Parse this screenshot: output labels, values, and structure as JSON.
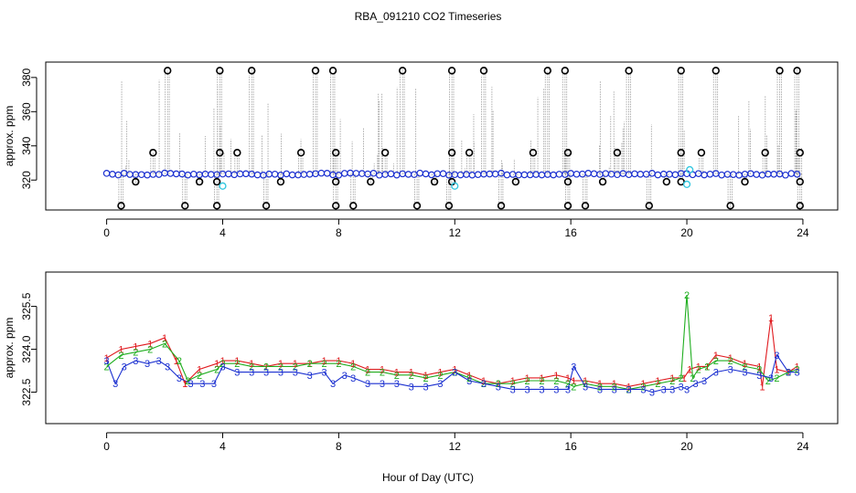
{
  "title": "RBA_091210  CO2 Timeseries",
  "xlabel": "Hour of Day (UTC)",
  "chart_data": [
    {
      "type": "scatter",
      "panel": "top",
      "ylabel": "approx. ppm",
      "xlim": [
        -2.1,
        25.2
      ],
      "ylim": [
        302.5,
        389
      ],
      "xticks": [
        0,
        4,
        8,
        12,
        16,
        20,
        24
      ],
      "yticks": [
        320,
        340,
        360,
        380
      ],
      "xtick_labels": [
        "0",
        "4",
        "8",
        "12",
        "16",
        "20",
        "24"
      ],
      "ytick_labels": [
        "320",
        "340",
        "360",
        "380"
      ],
      "baseline_ppm": 323.5,
      "outliers_high": [
        [
          2.1,
          384
        ],
        [
          3.9,
          384
        ],
        [
          5.0,
          384
        ],
        [
          7.2,
          384
        ],
        [
          7.8,
          384
        ],
        [
          10.2,
          384
        ],
        [
          11.9,
          384
        ],
        [
          13.0,
          384
        ],
        [
          15.2,
          384
        ],
        [
          15.8,
          384
        ],
        [
          18.0,
          384
        ],
        [
          19.8,
          384
        ],
        [
          21.0,
          384
        ],
        [
          23.2,
          384
        ],
        [
          23.8,
          384
        ]
      ],
      "outliers_mid": [
        [
          1.6,
          336
        ],
        [
          3.9,
          336
        ],
        [
          4.5,
          336
        ],
        [
          6.7,
          336
        ],
        [
          7.9,
          336
        ],
        [
          9.6,
          336
        ],
        [
          11.9,
          336
        ],
        [
          12.5,
          336
        ],
        [
          14.7,
          336
        ],
        [
          15.9,
          336
        ],
        [
          17.6,
          336
        ],
        [
          19.8,
          336
        ],
        [
          20.5,
          336
        ],
        [
          22.7,
          336
        ],
        [
          23.9,
          336
        ]
      ],
      "outliers_low": [
        [
          0.5,
          305
        ],
        [
          2.7,
          305
        ],
        [
          3.8,
          305
        ],
        [
          5.5,
          305
        ],
        [
          7.9,
          305
        ],
        [
          8.5,
          305
        ],
        [
          10.7,
          305
        ],
        [
          11.8,
          305
        ],
        [
          13.6,
          305
        ],
        [
          15.9,
          305
        ],
        [
          16.5,
          305
        ],
        [
          18.7,
          305
        ],
        [
          21.5,
          305
        ],
        [
          23.9,
          305
        ],
        [
          1.0,
          319
        ],
        [
          3.2,
          319
        ],
        [
          3.8,
          319
        ],
        [
          6.0,
          319
        ],
        [
          7.9,
          319
        ],
        [
          9.1,
          319
        ],
        [
          11.3,
          319
        ],
        [
          11.9,
          319
        ],
        [
          14.1,
          319
        ],
        [
          15.9,
          319
        ],
        [
          17.1,
          319
        ],
        [
          19.3,
          319
        ],
        [
          19.8,
          319
        ],
        [
          22.0,
          319
        ],
        [
          23.9,
          319
        ]
      ],
      "cyan_points": [
        [
          4.0,
          316.5
        ],
        [
          12.0,
          316.5
        ],
        [
          20.0,
          317.5
        ],
        [
          20.1,
          326
        ]
      ]
    },
    {
      "type": "line",
      "panel": "bottom",
      "ylabel": "approx. ppm",
      "xlim": [
        -2.1,
        25.2
      ],
      "ylim": [
        321.4,
        326.7
      ],
      "xticks": [
        0,
        4,
        8,
        12,
        16,
        20,
        24
      ],
      "yticks": [
        322.5,
        324.0,
        325.5
      ],
      "xtick_labels": [
        "0",
        "4",
        "8",
        "12",
        "16",
        "20",
        "24"
      ],
      "ytick_labels": [
        "322.5",
        "324.0",
        "325.5"
      ],
      "series": [
        {
          "name": "1",
          "color": "#e0191e",
          "x": [
            0,
            0.5,
            1,
            1.5,
            2,
            2.4,
            2.7,
            3.2,
            3.8,
            4,
            4.5,
            5,
            5.5,
            6,
            6.5,
            7,
            7.5,
            8,
            8.5,
            9,
            9.5,
            10,
            10.5,
            11,
            11.5,
            12,
            12.5,
            13,
            13.5,
            14,
            14.5,
            15,
            15.5,
            15.9,
            16.1,
            16.5,
            17,
            17.5,
            18,
            18.5,
            19,
            19.5,
            19.9,
            20.1,
            20.4,
            20.7,
            21,
            21.5,
            22,
            22.5,
            22.6,
            22.9,
            23.1,
            23.5,
            23.8
          ],
          "y": [
            323.7,
            324.0,
            324.1,
            324.2,
            324.4,
            323.6,
            322.8,
            323.3,
            323.5,
            323.6,
            323.6,
            323.5,
            323.4,
            323.5,
            323.5,
            323.5,
            323.6,
            323.6,
            323.5,
            323.3,
            323.3,
            323.2,
            323.2,
            323.1,
            323.2,
            323.3,
            323.1,
            322.9,
            322.8,
            322.9,
            323.0,
            323.0,
            323.1,
            323.0,
            322.9,
            322.9,
            322.8,
            322.8,
            322.7,
            322.8,
            322.9,
            323.0,
            323.0,
            323.3,
            323.4,
            323.4,
            323.8,
            323.7,
            323.5,
            323.4,
            322.7,
            325.1,
            323.3,
            323.2,
            323.4
          ]
        },
        {
          "name": "2",
          "color": "#1fae1f",
          "x": [
            0,
            0.5,
            1,
            1.5,
            2,
            2.5,
            2.8,
            3.2,
            3.8,
            4,
            4.5,
            5,
            5.5,
            6,
            6.5,
            7,
            7.5,
            8,
            8.5,
            9,
            9.5,
            10,
            10.5,
            11,
            11.5,
            12,
            12.5,
            13,
            13.5,
            14,
            14.5,
            15,
            15.5,
            15.9,
            16.1,
            16.5,
            17,
            17.5,
            18,
            18.5,
            19,
            19.5,
            19.8,
            20.0,
            20.2,
            20.4,
            20.7,
            21,
            21.5,
            22,
            22.5,
            22.8,
            23.1,
            23.5,
            23.8
          ],
          "y": [
            323.4,
            323.8,
            323.9,
            324.0,
            324.2,
            323.6,
            322.9,
            323.1,
            323.3,
            323.5,
            323.5,
            323.4,
            323.4,
            323.4,
            323.4,
            323.5,
            323.5,
            323.5,
            323.4,
            323.2,
            323.2,
            323.1,
            323.1,
            323.0,
            323.1,
            323.2,
            323.0,
            322.8,
            322.8,
            322.8,
            322.9,
            322.9,
            322.9,
            322.8,
            322.7,
            322.8,
            322.7,
            322.7,
            322.6,
            322.7,
            322.8,
            322.9,
            323.0,
            325.9,
            323.0,
            323.3,
            323.4,
            323.6,
            323.6,
            323.4,
            323.3,
            322.9,
            323.0,
            323.2,
            323.3
          ]
        },
        {
          "name": "3",
          "color": "#1a2fd0",
          "x": [
            0,
            0.3,
            0.6,
            1,
            1.4,
            1.8,
            2.1,
            2.5,
            2.9,
            3.3,
            3.7,
            4,
            4.5,
            5,
            5.5,
            6,
            6.5,
            7,
            7.5,
            7.8,
            8.2,
            8.5,
            9,
            9.5,
            10,
            10.5,
            11,
            11.5,
            12,
            12.5,
            13,
            13.5,
            14,
            14.5,
            15,
            15.5,
            15.9,
            16.1,
            16.5,
            17,
            17.5,
            18,
            18.5,
            18.8,
            19.2,
            19.5,
            19.8,
            20,
            20.3,
            20.6,
            21,
            21.5,
            22,
            22.5,
            22.9,
            23.1,
            23.5,
            23.8
          ],
          "y": [
            323.6,
            322.8,
            323.4,
            323.6,
            323.5,
            323.6,
            323.4,
            323.0,
            322.8,
            322.8,
            322.8,
            323.4,
            323.2,
            323.2,
            323.2,
            323.2,
            323.2,
            323.1,
            323.2,
            322.8,
            323.1,
            323.0,
            322.8,
            322.8,
            322.8,
            322.7,
            322.7,
            322.8,
            323.2,
            322.9,
            322.8,
            322.7,
            322.6,
            322.6,
            322.6,
            322.6,
            322.6,
            323.4,
            322.7,
            322.6,
            322.6,
            322.6,
            322.6,
            322.5,
            322.6,
            322.6,
            322.7,
            322.6,
            322.8,
            322.9,
            323.2,
            323.3,
            323.2,
            323.1,
            323.0,
            323.8,
            323.2,
            323.2
          ]
        }
      ]
    }
  ]
}
